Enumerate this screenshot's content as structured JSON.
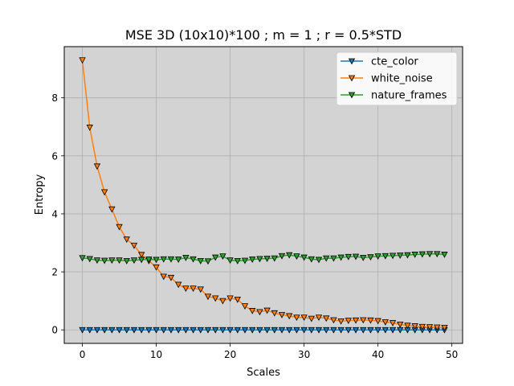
{
  "chart_data": {
    "type": "line",
    "title": "MSE 3D (10x10)*100 ; m = 1 ; r = 0.5*STD",
    "xlabel": "Scales",
    "ylabel": "Entropy",
    "xlim": [
      -2.45,
      51.45
    ],
    "ylim": [
      -0.465,
      9.765
    ],
    "xticks": [
      0,
      10,
      20,
      30,
      40,
      50
    ],
    "yticks": [
      0,
      2,
      4,
      6,
      8
    ],
    "grid": true,
    "background": "#d3d3d3",
    "legend_position": "top-right",
    "marker": "triangle-down",
    "x": [
      0,
      1,
      2,
      3,
      4,
      5,
      6,
      7,
      8,
      9,
      10,
      11,
      12,
      13,
      14,
      15,
      16,
      17,
      18,
      19,
      20,
      21,
      22,
      23,
      24,
      25,
      26,
      27,
      28,
      29,
      30,
      31,
      32,
      33,
      34,
      35,
      36,
      37,
      38,
      39,
      40,
      41,
      42,
      43,
      44,
      45,
      46,
      47,
      48,
      49
    ],
    "series": [
      {
        "name": "cte_color",
        "color": "#1f77b4",
        "values": [
          0,
          0,
          0,
          0,
          0,
          0,
          0,
          0,
          0,
          0,
          0,
          0,
          0,
          0,
          0,
          0,
          0,
          0,
          0,
          0,
          0,
          0,
          0,
          0,
          0,
          0,
          0,
          0,
          0,
          0,
          0,
          0,
          0,
          0,
          0,
          0,
          0,
          0,
          0,
          0,
          0,
          0,
          0,
          0,
          0,
          0,
          0,
          0,
          0,
          0
        ]
      },
      {
        "name": "white_noise",
        "color": "#ff7f0e",
        "values": [
          9.3,
          6.98,
          5.64,
          4.75,
          4.16,
          3.55,
          3.12,
          2.91,
          2.59,
          2.38,
          2.16,
          1.84,
          1.8,
          1.56,
          1.43,
          1.43,
          1.4,
          1.15,
          1.09,
          1.0,
          1.09,
          1.05,
          0.82,
          0.66,
          0.62,
          0.67,
          0.58,
          0.52,
          0.48,
          0.43,
          0.43,
          0.39,
          0.43,
          0.4,
          0.34,
          0.3,
          0.32,
          0.33,
          0.34,
          0.33,
          0.31,
          0.27,
          0.24,
          0.19,
          0.15,
          0.13,
          0.11,
          0.1,
          0.09,
          0.08
        ]
      },
      {
        "name": "nature_frames",
        "color": "#2ca02c",
        "values": [
          2.48,
          2.45,
          2.4,
          2.39,
          2.4,
          2.4,
          2.38,
          2.4,
          2.42,
          2.43,
          2.42,
          2.44,
          2.44,
          2.43,
          2.49,
          2.44,
          2.38,
          2.37,
          2.5,
          2.54,
          2.4,
          2.38,
          2.39,
          2.43,
          2.45,
          2.46,
          2.47,
          2.55,
          2.58,
          2.54,
          2.5,
          2.44,
          2.42,
          2.47,
          2.47,
          2.5,
          2.52,
          2.53,
          2.49,
          2.51,
          2.54,
          2.55,
          2.56,
          2.57,
          2.58,
          2.6,
          2.61,
          2.62,
          2.62,
          2.6
        ]
      }
    ]
  }
}
